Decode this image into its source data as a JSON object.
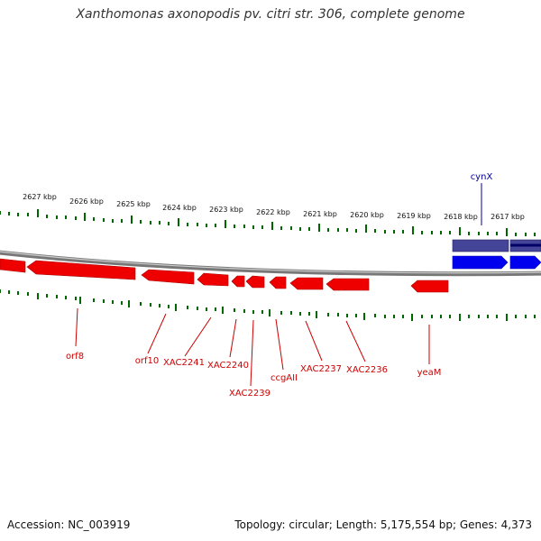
{
  "title": "Xanthomonas axonopodis pv. citri str. 306, complete genome",
  "footer": {
    "accession": "Accession: NC_003919",
    "summary": "Topology: circular; Length: 5,175,554 bp; Genes: 4,373"
  },
  "colors": {
    "reverse_gene": "#ee0000",
    "forward_gene": "#0000ee",
    "forward_gene_alt": "#333399",
    "tick": "#006600",
    "backbone": "#888888",
    "label_red": "#cc0000",
    "label_blue": "#000099"
  },
  "tick_labels": [
    "2627 kbp",
    "2626 kbp",
    "2625 kbp",
    "2624 kbp",
    "2623 kbp",
    "2622 kbp",
    "2621 kbp",
    "2620 kbp",
    "2619 kbp",
    "2618 kbp",
    "2617 kbp"
  ],
  "genes": {
    "reverse": [
      "orf8",
      "orf10",
      "XAC2241",
      "XAC2240",
      "XAC2239",
      "ccgAII",
      "XAC2237",
      "XAC2236",
      "yeaM"
    ],
    "forward": [
      "cynX"
    ]
  }
}
